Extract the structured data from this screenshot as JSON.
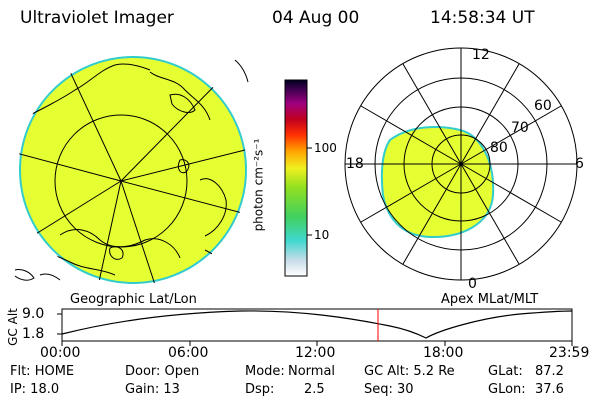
{
  "header": {
    "instrument": "Ultraviolet Imager",
    "date": "04 Aug 00",
    "time": "14:58:34 UT"
  },
  "colorbar": {
    "unit_label": "photon cm⁻²s⁻¹",
    "ticks": [
      "100",
      "10"
    ]
  },
  "left_panel": {
    "label": "Geographic Lat/Lon"
  },
  "right_panel": {
    "label": "Apex MLat/MLT",
    "mlt_labels": [
      "12",
      "18",
      "6",
      "0"
    ],
    "mlat_labels": [
      "60",
      "70",
      "80"
    ]
  },
  "timeline": {
    "axis_label": "GC Alt",
    "y_ticks": [
      "9.0",
      "1.8"
    ],
    "x_ticks": [
      "00:00",
      "06:00",
      "12:00",
      "18:00",
      "23:59"
    ]
  },
  "status": {
    "row1": {
      "flt": "Flt: HOME",
      "door": "Door: Open",
      "mode_label": "Mode:",
      "mode_value": "Normal",
      "gcalt": "GC Alt: 5.2 Re",
      "glat_label": "GLat:",
      "glat_value": "87.2"
    },
    "row2": {
      "ip": "IP: 18.0",
      "gain": "Gain: 13",
      "dsp_label": "Dsp:",
      "dsp_value": "2.5",
      "seq": "Seq: 30",
      "glon_label": "GLon:",
      "glon_value": "37.6"
    }
  },
  "colors": {
    "aurora": "#e6ff33",
    "aurora_edge": "#33cccc",
    "marker": "#ff0000"
  }
}
